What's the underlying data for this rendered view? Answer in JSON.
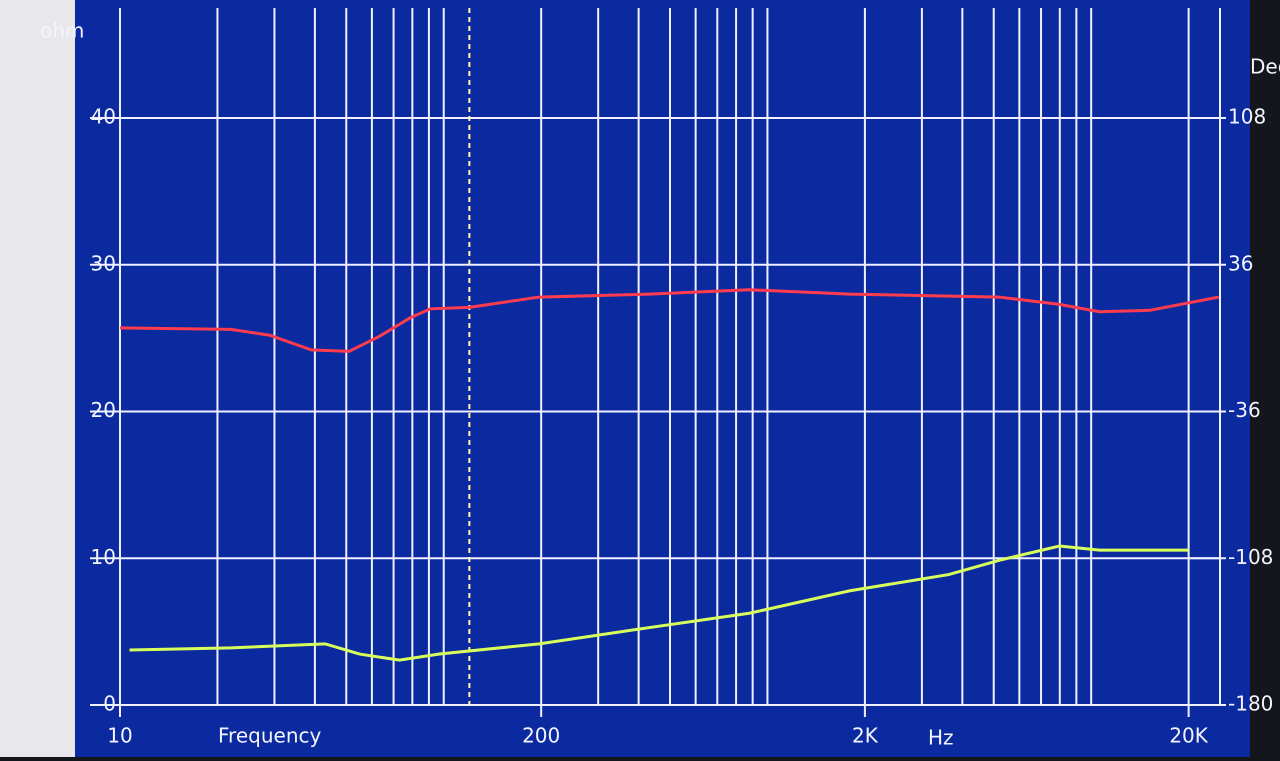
{
  "chart_data": {
    "type": "line",
    "y_label": "ohm",
    "y2_label": "Deg",
    "x_label": "Frequency",
    "x_unit": "Hz",
    "xscale": "log",
    "grid": true,
    "xlim": [
      10,
      25000
    ],
    "xticks": [
      10,
      200,
      {
        "value": 2000,
        "label": "2K"
      },
      {
        "value": 20000,
        "label": "20K"
      }
    ],
    "ylim": [
      0,
      47.5
    ],
    "yticks": [
      0,
      10,
      20,
      30,
      40
    ],
    "y2lim": [
      -180,
      162
    ],
    "y2ticks": [
      -180,
      -108,
      -36,
      36,
      108
    ],
    "cursor": 120,
    "series": [
      {
        "color": "#ff3b4e",
        "x": [
          10,
          22,
          29,
          39,
          51,
          63,
          79,
          91,
          120,
          197,
          432,
          878,
          1790,
          5200,
          7980,
          10600,
          15200,
          24800
        ],
        "values": [
          25.7,
          25.6,
          25.2,
          24.2,
          24.1,
          25.1,
          26.4,
          27.0,
          27.1,
          27.8,
          28.0,
          28.3,
          28.0,
          27.8,
          27.3,
          26.8,
          26.9,
          27.8
        ]
      },
      {
        "color": "#d8ff5a",
        "axis": "y2",
        "x": [
          10.7,
          22,
          43,
          55,
          73,
          97,
          197,
          432,
          878,
          1790,
          3630,
          5200,
          7980,
          10600,
          20000
        ],
        "values": [
          -153,
          -152,
          -150,
          -155,
          -158,
          -155,
          -150,
          -142,
          -135,
          -124,
          -116,
          -109,
          -102,
          -104,
          -104
        ]
      }
    ]
  }
}
